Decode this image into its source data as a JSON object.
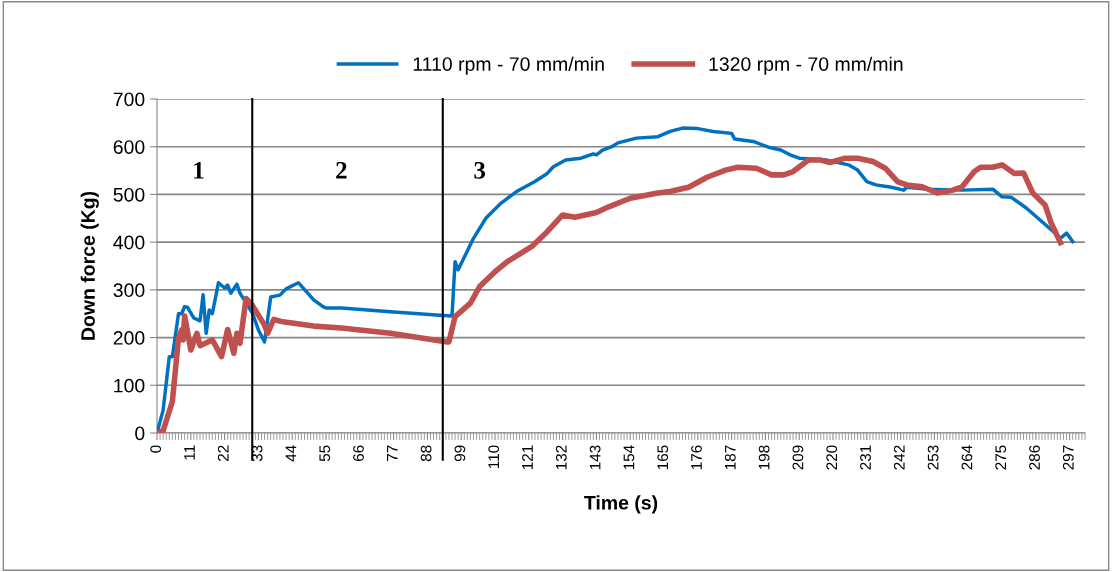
{
  "chart_data": {
    "type": "line",
    "xlabel": "Time (s)",
    "ylabel": "Down force (Kg)",
    "xlim": [
      0,
      302
    ],
    "xticks": [
      0,
      11,
      22,
      33,
      44,
      55,
      66,
      77,
      88,
      99,
      110,
      121,
      132,
      143,
      154,
      165,
      176,
      187,
      198,
      209,
      220,
      231,
      242,
      253,
      264,
      275,
      286,
      297
    ],
    "ylim": [
      0,
      700
    ],
    "yticks": [
      0,
      100,
      200,
      300,
      400,
      500,
      600,
      700
    ],
    "grid": "y",
    "legend": "top",
    "marker": "none",
    "line_style": "solid",
    "ref_lines": [
      {
        "axis": "x",
        "value": 31,
        "color": "#000000"
      },
      {
        "axis": "x",
        "value": 93,
        "color": "#000000"
      }
    ],
    "annotations": [
      "1",
      "2",
      "3"
    ],
    "series": [
      {
        "name": "1110 rpm - 70 mm/min",
        "color": "#0070c0",
        "x": [
          0,
          2,
          4,
          5,
          7,
          8,
          9,
          10,
          12,
          14,
          15,
          16,
          17,
          18,
          20,
          22,
          23,
          24,
          26,
          27,
          31,
          33,
          35,
          37,
          40,
          42,
          46,
          51,
          54,
          55,
          60,
          76,
          92,
          96,
          97,
          98,
          103,
          107,
          112,
          117,
          123,
          127,
          129,
          133,
          138,
          142,
          143,
          145,
          148,
          150,
          156,
          163,
          167,
          171,
          176,
          181,
          187,
          188,
          194,
          199,
          203,
          206,
          209,
          218,
          225,
          228,
          231,
          234,
          239,
          243,
          244,
          251,
          262,
          272,
          275,
          278,
          283,
          291,
          294,
          296,
          298
        ],
        "values": [
          0,
          48,
          160,
          160,
          250,
          250,
          265,
          263,
          241,
          235,
          290,
          209,
          258,
          250,
          315,
          304,
          310,
          293,
          312,
          293,
          252,
          216,
          191,
          285,
          289,
          302,
          315,
          279,
          265,
          262,
          262,
          254,
          247,
          245,
          359,
          342,
          408,
          450,
          482,
          506,
          527,
          544,
          558,
          572,
          576,
          585,
          583,
          593,
          600,
          608,
          618,
          621,
          632,
          639,
          638,
          632,
          628,
          616,
          611,
          599,
          593,
          583,
          576,
          572,
          562,
          551,
          527,
          520,
          515,
          509,
          515,
          511,
          509,
          511,
          495,
          494,
          471,
          426,
          408,
          419,
          401
        ]
      },
      {
        "name": "1320 rpm - 70 mm/min",
        "color": "#c0504d",
        "x": [
          0,
          2,
          5,
          7,
          8,
          8.5,
          9,
          11,
          13,
          14,
          18,
          21,
          23,
          25,
          26,
          27,
          29,
          31,
          35,
          36,
          38,
          41,
          51,
          60,
          76,
          94,
          95,
          97,
          102,
          105,
          110,
          114,
          122,
          127,
          132,
          136,
          143,
          147,
          154,
          163,
          167,
          173,
          179,
          185,
          189,
          195,
          200,
          204,
          207,
          212,
          216,
          219,
          224,
          228,
          233,
          237,
          241,
          244,
          249,
          254,
          259,
          262,
          266,
          268,
          272,
          275,
          279,
          282,
          285,
          289,
          291,
          294
        ],
        "values": [
          0,
          5,
          66,
          199,
          216,
          195,
          245,
          174,
          209,
          183,
          195,
          160,
          217,
          167,
          209,
          188,
          282,
          268,
          226,
          209,
          238,
          233,
          224,
          220,
          209,
          191,
          191,
          244,
          272,
          307,
          338,
          359,
          391,
          422,
          457,
          452,
          462,
          474,
          492,
          503,
          506,
          515,
          536,
          551,
          557,
          555,
          541,
          541,
          548,
          572,
          572,
          567,
          576,
          576,
          569,
          555,
          527,
          520,
          516,
          503,
          509,
          516,
          548,
          557,
          557,
          562,
          544,
          545,
          503,
          478,
          440,
          399
        ]
      }
    ]
  }
}
